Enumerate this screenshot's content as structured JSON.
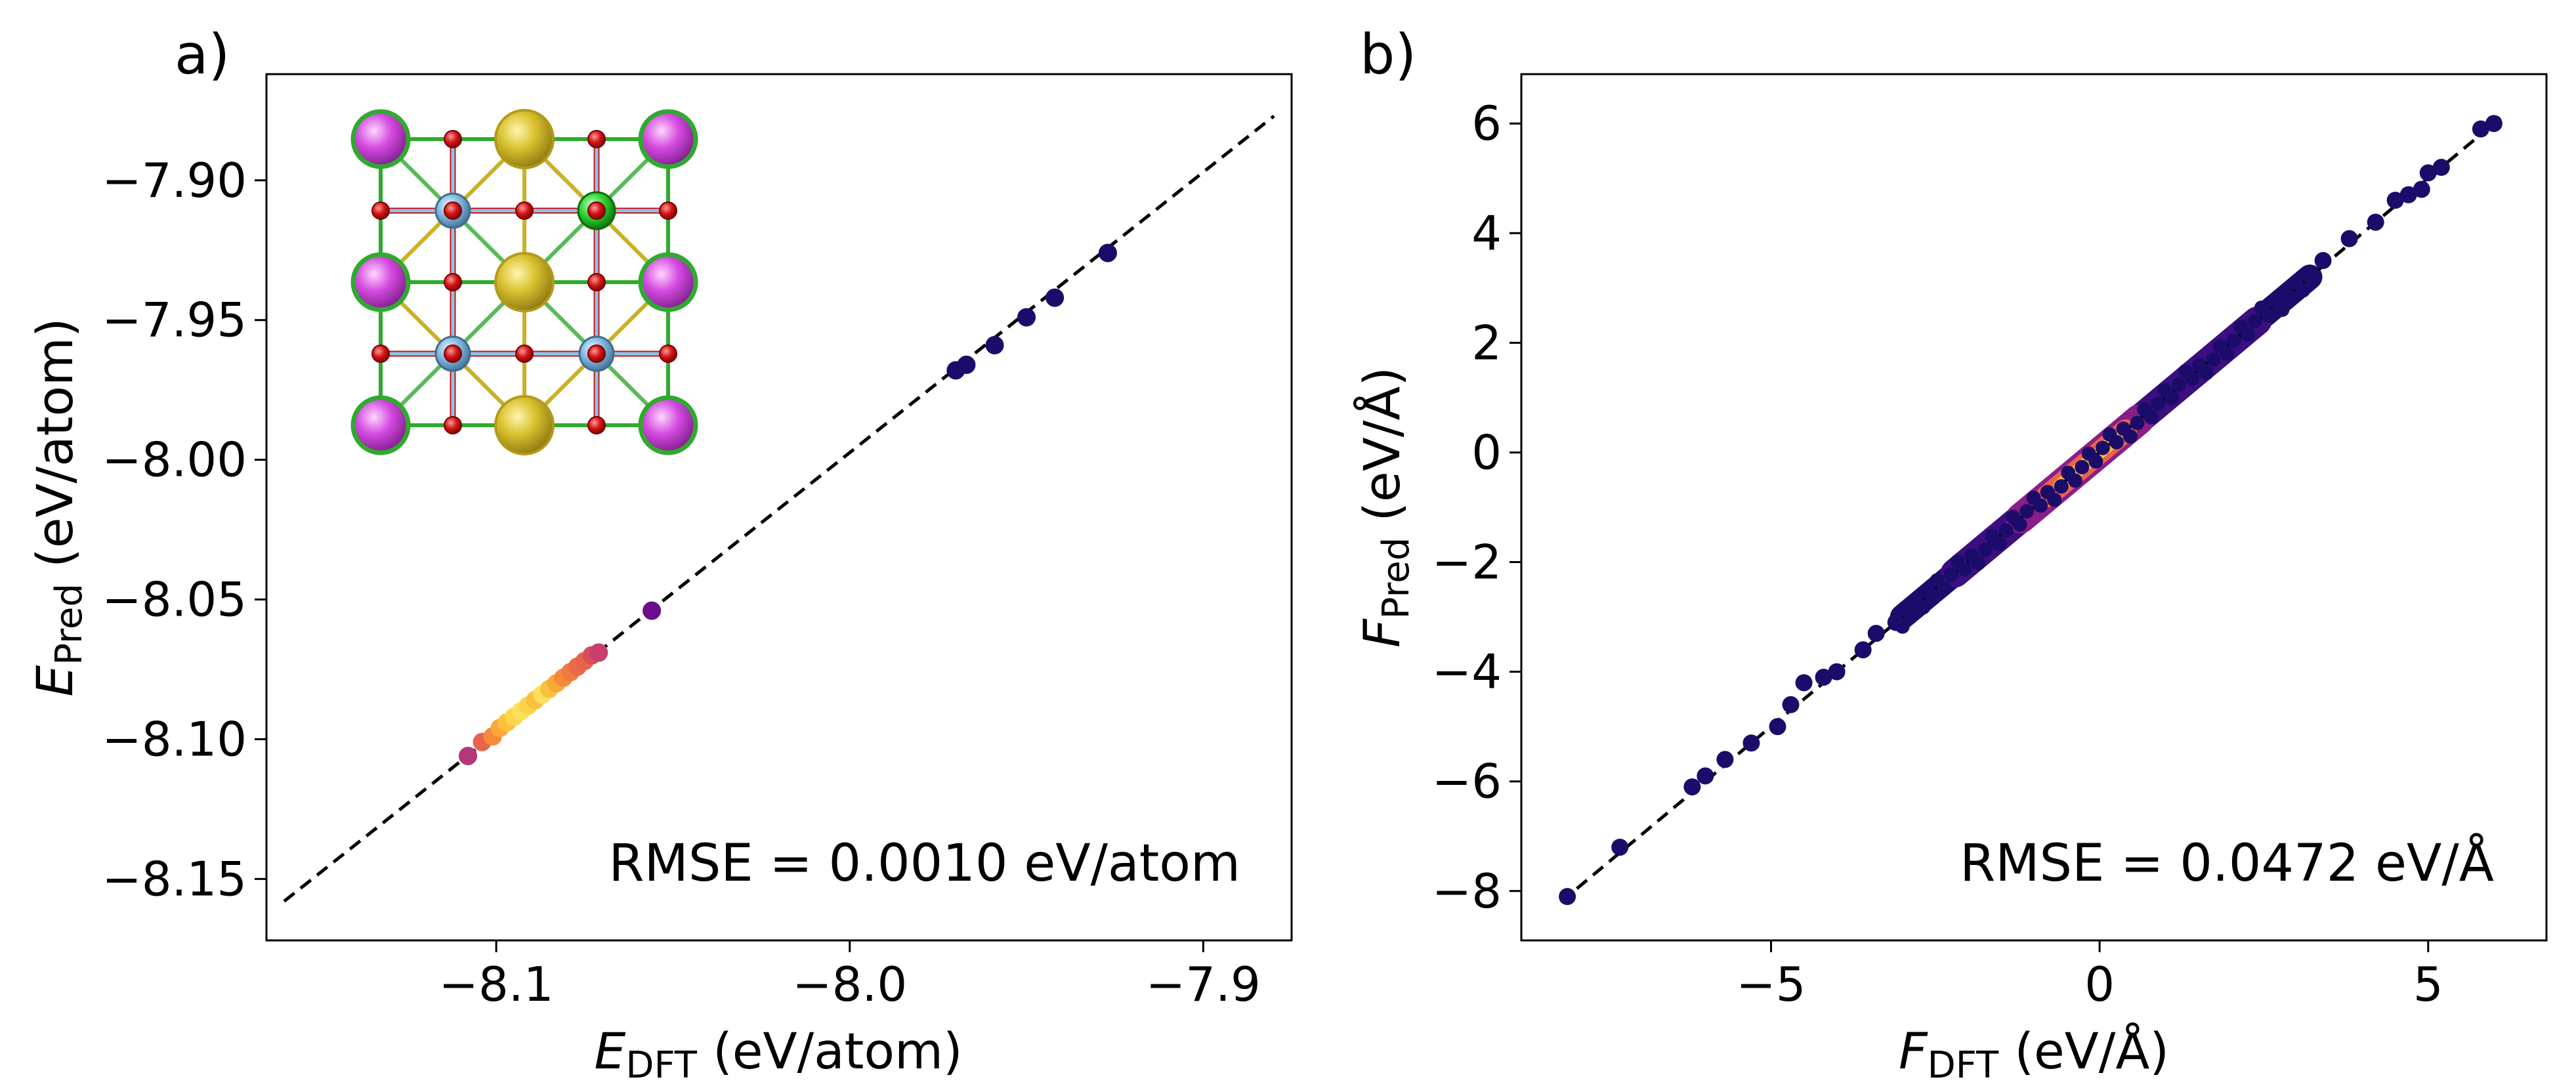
{
  "chart_data": [
    {
      "type": "scatter",
      "panel_label": "a)",
      "xlabel_symbol": "E",
      "xlabel_sub": "DFT",
      "xlabel_unit": " (eV/atom)",
      "ylabel_symbol": "E",
      "ylabel_sub": "Pred",
      "ylabel_unit": " (eV/atom)",
      "xlim": [
        -8.165,
        -7.875
      ],
      "ylim": [
        -8.172,
        -7.862
      ],
      "xticks": [
        -8.1,
        -8.0,
        -7.9
      ],
      "xtick_labels": [
        "−8.1",
        "−8.0",
        "−7.9"
      ],
      "yticks": [
        -7.9,
        -7.95,
        -8.0,
        -8.05,
        -8.1,
        -8.15
      ],
      "ytick_labels": [
        "−7.90",
        "−7.95",
        "−8.00",
        "−8.05",
        "−8.10",
        "−8.15"
      ],
      "annotation": "RMSE = 0.0010 eV/atom",
      "reference_line": {
        "style": "dashed",
        "x": [
          -8.16,
          -7.88
        ],
        "y": [
          -8.158,
          -7.877
        ]
      },
      "inset": "crystal structure (perovskite lattice)",
      "points": [
        {
          "x": -8.108,
          "y": -8.106,
          "c": "#b5367a"
        },
        {
          "x": -8.104,
          "y": -8.101,
          "c": "#e8634d"
        },
        {
          "x": -8.101,
          "y": -8.099,
          "c": "#f58a3a"
        },
        {
          "x": -8.099,
          "y": -8.096,
          "c": "#f9a83a"
        },
        {
          "x": -8.097,
          "y": -8.094,
          "c": "#fcc13c"
        },
        {
          "x": -8.095,
          "y": -8.092,
          "c": "#fcd64a"
        },
        {
          "x": -8.093,
          "y": -8.09,
          "c": "#fbe05a"
        },
        {
          "x": -8.091,
          "y": -8.088,
          "c": "#fbd24b"
        },
        {
          "x": -8.089,
          "y": -8.086,
          "c": "#fbc13e"
        },
        {
          "x": -8.087,
          "y": -8.084,
          "c": "#fbe05a"
        },
        {
          "x": -8.085,
          "y": -8.082,
          "c": "#fcc13c"
        },
        {
          "x": -8.083,
          "y": -8.08,
          "c": "#f9a83a"
        },
        {
          "x": -8.081,
          "y": -8.078,
          "c": "#f58a3a"
        },
        {
          "x": -8.079,
          "y": -8.076,
          "c": "#f07a40"
        },
        {
          "x": -8.077,
          "y": -8.074,
          "c": "#ea6a47"
        },
        {
          "x": -8.075,
          "y": -8.072,
          "c": "#e8634d"
        },
        {
          "x": -8.073,
          "y": -8.07,
          "c": "#d94e5f"
        },
        {
          "x": -8.071,
          "y": -8.069,
          "c": "#c93f6e"
        },
        {
          "x": -8.056,
          "y": -8.054,
          "c": "#6a0f8c"
        },
        {
          "x": -7.97,
          "y": -7.968,
          "c": "#1b0c6b"
        },
        {
          "x": -7.967,
          "y": -7.966,
          "c": "#1b0c6b"
        },
        {
          "x": -7.959,
          "y": -7.959,
          "c": "#1b0c6b"
        },
        {
          "x": -7.95,
          "y": -7.949,
          "c": "#1b0c6b"
        },
        {
          "x": -7.942,
          "y": -7.942,
          "c": "#1b0c6b"
        },
        {
          "x": -7.927,
          "y": -7.926,
          "c": "#1b0c6b"
        }
      ]
    },
    {
      "type": "scatter",
      "panel_label": "b)",
      "xlabel_symbol": "F",
      "xlabel_sub": "DFT",
      "xlabel_unit": " (eV/Å)",
      "ylabel_symbol": "F",
      "ylabel_sub": "Pred",
      "ylabel_unit": " (eV/Å)",
      "xlim": [
        -8.8,
        6.8
      ],
      "ylim": [
        -8.9,
        6.9
      ],
      "xticks": [
        -5,
        0,
        5
      ],
      "xtick_labels": [
        "−5",
        "0",
        "5"
      ],
      "yticks": [
        6,
        4,
        2,
        0,
        -2,
        -4,
        -6,
        -8
      ],
      "ytick_labels": [
        "6",
        "4",
        "2",
        "0",
        "−2",
        "−4",
        "−6",
        "−8"
      ],
      "annotation": "RMSE = 0.0472 eV/Å",
      "reference_line": {
        "style": "dashed",
        "x": [
          -8.2,
          6.1
        ],
        "y": [
          -8.2,
          6.1
        ]
      },
      "outliers": [
        {
          "x": -8.1,
          "y": -8.1
        },
        {
          "x": -7.3,
          "y": -7.2
        },
        {
          "x": -6.2,
          "y": -6.1
        },
        {
          "x": -6.0,
          "y": -5.9
        },
        {
          "x": -5.7,
          "y": -5.6
        },
        {
          "x": -5.3,
          "y": -5.3
        },
        {
          "x": -4.9,
          "y": -5.0
        },
        {
          "x": -4.7,
          "y": -4.6
        },
        {
          "x": -4.5,
          "y": -4.2
        },
        {
          "x": -4.2,
          "y": -4.1
        },
        {
          "x": -4.0,
          "y": -4.0
        },
        {
          "x": -3.6,
          "y": -3.6
        },
        {
          "x": -3.4,
          "y": -3.3
        },
        {
          "x": -3.1,
          "y": -3.1
        },
        {
          "x": 3.4,
          "y": 3.5
        },
        {
          "x": 3.8,
          "y": 3.9
        },
        {
          "x": 4.2,
          "y": 4.2
        },
        {
          "x": 4.5,
          "y": 4.6
        },
        {
          "x": 4.7,
          "y": 4.7
        },
        {
          "x": 4.9,
          "y": 4.8
        },
        {
          "x": 5.0,
          "y": 5.1
        },
        {
          "x": 5.2,
          "y": 5.2
        },
        {
          "x": 5.8,
          "y": 5.9
        },
        {
          "x": 6.0,
          "y": 6.0
        }
      ],
      "density_band": {
        "x_range": [
          -3.0,
          3.2
        ],
        "core_x_range": [
          -1.2,
          0.6
        ],
        "hot_x_range": [
          -0.8,
          0.4
        ]
      }
    }
  ]
}
